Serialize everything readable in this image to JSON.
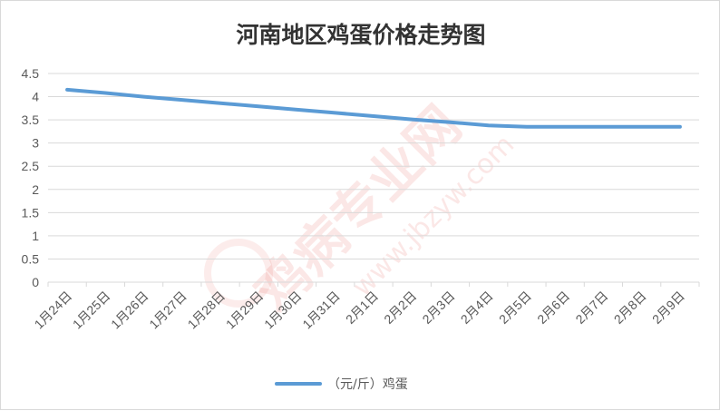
{
  "chart_data": {
    "type": "line",
    "title": "河南地区鸡蛋价格走势图",
    "categories": [
      "1月24日",
      "1月25日",
      "1月26日",
      "1月27日",
      "1月28日",
      "1月29日",
      "1月30日",
      "1月31日",
      "2月1日",
      "2月2日",
      "2月3日",
      "2月4日",
      "2月5日",
      "2月6日",
      "2月7日",
      "2月8日",
      "2月9日"
    ],
    "series": [
      {
        "name": "（元/斤）鸡蛋",
        "color": "#5b9bd5",
        "values": [
          4.15,
          4.08,
          4.0,
          3.93,
          3.86,
          3.79,
          3.72,
          3.65,
          3.58,
          3.51,
          3.45,
          3.38,
          3.35,
          3.35,
          3.35,
          3.35,
          3.35
        ]
      }
    ],
    "ylim": [
      0,
      4.5
    ],
    "yticks": [
      "0",
      "0.5",
      "1",
      "1.5",
      "2",
      "2.5",
      "3",
      "3.5",
      "4",
      "4.5"
    ],
    "grid": true,
    "legend_position": "bottom"
  },
  "watermark": {
    "site_cn": "鸡病专业网",
    "site_url": "www.jbzyw.com"
  }
}
